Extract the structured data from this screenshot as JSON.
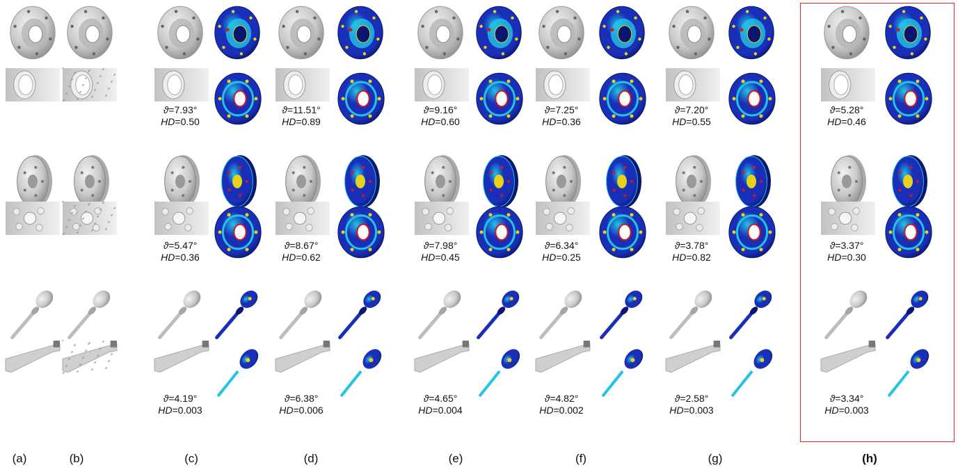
{
  "colors": {
    "mesh_gray": "#c9c9c9",
    "error_low": "#1a2fb8",
    "error_mid": "#22c3e6",
    "error_high": "#e8d21a",
    "error_peak": "#d21a1a",
    "highlight_border": "#e0242a"
  },
  "columns": [
    {
      "id": "a",
      "label": "(a)",
      "bold": false
    },
    {
      "id": "b",
      "label": "(b)",
      "bold": false
    },
    {
      "id": "c",
      "label": "(c)",
      "bold": false
    },
    {
      "id": "d",
      "label": "(d)",
      "bold": false
    },
    {
      "id": "e",
      "label": "(e)",
      "bold": false
    },
    {
      "id": "f",
      "label": "(f)",
      "bold": false
    },
    {
      "id": "g",
      "label": "(g)",
      "bold": false
    },
    {
      "id": "h",
      "label": "(h)",
      "bold": true
    }
  ],
  "rows": [
    {
      "model": "flange",
      "metrics": [
        {
          "theta": "=7.93°",
          "hd": "=0.50"
        },
        {
          "theta": "=11.51°",
          "hd": "=0.89"
        },
        {
          "theta": "=9.16°",
          "hd": "=0.60"
        },
        {
          "theta": "=7.25°",
          "hd": "=0.36"
        },
        {
          "theta": "=7.20°",
          "hd": "=0.55"
        },
        {
          "theta": "=5.28°",
          "hd": "=0.46"
        }
      ]
    },
    {
      "model": "wheel",
      "metrics": [
        {
          "theta": "=5.47°",
          "hd": "=0.36"
        },
        {
          "theta": "=8.67°",
          "hd": "=0.62"
        },
        {
          "theta": "=7.98°",
          "hd": "=0.45"
        },
        {
          "theta": "=6.34°",
          "hd": "=0.25"
        },
        {
          "theta": "=3.78°",
          "hd": "=0.82"
        },
        {
          "theta": "=3.37°",
          "hd": "=0.30"
        }
      ]
    },
    {
      "model": "screwdriver",
      "metrics": [
        {
          "theta": "=4.19°",
          "hd": "=0.003"
        },
        {
          "theta": "=6.38°",
          "hd": "=0.006"
        },
        {
          "theta": "=4.65°",
          "hd": "=0.004"
        },
        {
          "theta": "=4.82°",
          "hd": "=0.002"
        },
        {
          "theta": "=2.58°",
          "hd": "=0.003"
        },
        {
          "theta": "=3.34°",
          "hd": "=0.003"
        }
      ]
    }
  ],
  "symbols": {
    "theta": "ϑ",
    "hd": "HD"
  }
}
